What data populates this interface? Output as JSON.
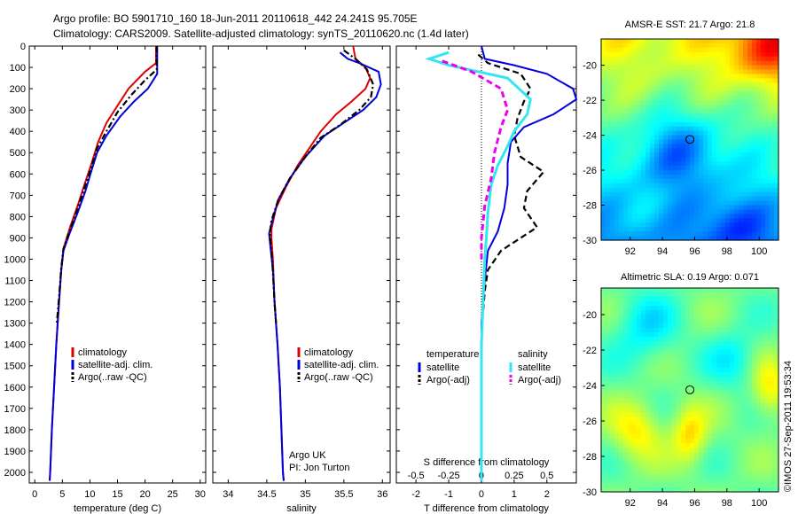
{
  "title": {
    "line1": "Argo profile: BO 5901710_160 18-Jun-2011 20110618_442 24.241S 95.705E",
    "line2": "Climatology: CARS2009. Satellite-adjusted climatology: synTS_20110620.nc (1.4d later)"
  },
  "colors": {
    "climatology": "#dd0000",
    "satellite": "#0000dd",
    "argo": "#000000",
    "sat_salinity": "#33e6f0",
    "argo_salinity": "#ee00ee"
  },
  "side_text": "©IMOS 27-Sep-2011 19:53:34",
  "chart_data": [
    {
      "type": "line",
      "id": "temperature",
      "xlabel": "temperature (deg C)",
      "ylabel": "",
      "xlim": [
        -1,
        31
      ],
      "ylim": [
        2050,
        0
      ],
      "xticks": [
        "0",
        "5",
        "10",
        "15",
        "20",
        "25",
        "30"
      ],
      "yticks": [
        "0",
        "100",
        "200",
        "300",
        "400",
        "500",
        "600",
        "700",
        "800",
        "900",
        "1000",
        "1100",
        "1200",
        "1300",
        "1400",
        "1500",
        "1600",
        "1700",
        "1800",
        "1900",
        "2000"
      ],
      "legend": [
        "climatology",
        "satellite-adj. clim.",
        "Argo(..raw -QC)"
      ],
      "series": [
        {
          "name": "climatology",
          "style": "solid",
          "color": "#dd0000",
          "points": [
            [
              22.0,
              0
            ],
            [
              22.0,
              80
            ],
            [
              20.0,
              120
            ],
            [
              17.0,
              200
            ],
            [
              15.0,
              280
            ],
            [
              13.0,
              360
            ],
            [
              11.5,
              450
            ],
            [
              10.3,
              550
            ],
            [
              9.0,
              650
            ],
            [
              7.9,
              740
            ],
            [
              6.4,
              850
            ],
            [
              5.2,
              950
            ],
            [
              4.8,
              1050
            ],
            [
              4.4,
              1200
            ],
            [
              3.9,
              1400
            ],
            [
              3.5,
              1600
            ],
            [
              3.1,
              1800
            ],
            [
              2.8,
              2000
            ],
            [
              2.7,
              2040
            ]
          ]
        },
        {
          "name": "satellite-adj. clim.",
          "style": "solid",
          "color": "#0000dd",
          "points": [
            [
              22.2,
              0
            ],
            [
              22.2,
              130
            ],
            [
              20.5,
              200
            ],
            [
              18.0,
              260
            ],
            [
              15.5,
              330
            ],
            [
              13.0,
              420
            ],
            [
              11.3,
              500
            ],
            [
              10.1,
              600
            ],
            [
              9.2,
              680
            ],
            [
              7.8,
              780
            ],
            [
              6.3,
              880
            ],
            [
              5.2,
              960
            ],
            [
              4.8,
              1050
            ],
            [
              4.4,
              1200
            ],
            [
              3.9,
              1400
            ],
            [
              3.5,
              1600
            ],
            [
              3.1,
              1800
            ],
            [
              2.8,
              2000
            ],
            [
              2.7,
              2040
            ]
          ]
        },
        {
          "name": "Argo(..raw -QC)",
          "style": "dashdot",
          "color": "#000000",
          "points": [
            [
              22.1,
              0
            ],
            [
              22.1,
              110
            ],
            [
              20.0,
              160
            ],
            [
              17.5,
              230
            ],
            [
              15.0,
              310
            ],
            [
              13.0,
              400
            ],
            [
              11.3,
              480
            ],
            [
              10.1,
              580
            ],
            [
              9.1,
              660
            ],
            [
              7.8,
              760
            ],
            [
              6.3,
              870
            ],
            [
              5.2,
              950
            ],
            [
              4.8,
              1040
            ],
            [
              4.4,
              1180
            ],
            [
              4.0,
              1300
            ]
          ]
        }
      ]
    },
    {
      "type": "line",
      "id": "salinity",
      "xlabel": "salinity",
      "ylabel": "",
      "xlim": [
        33.8,
        36.1
      ],
      "ylim": [
        2050,
        0
      ],
      "xticks": [
        "34",
        "34.5",
        "35",
        "35.5",
        "36"
      ],
      "legend": [
        "climatology",
        "satellite-adj. clim.",
        "Argo(..raw -QC)"
      ],
      "annotation": [
        "Argo UK",
        "PI: Jon Turton"
      ],
      "series": [
        {
          "name": "climatology",
          "style": "solid",
          "color": "#dd0000",
          "points": [
            [
              35.62,
              0
            ],
            [
              35.65,
              60
            ],
            [
              35.78,
              100
            ],
            [
              35.84,
              150
            ],
            [
              35.78,
              200
            ],
            [
              35.6,
              260
            ],
            [
              35.4,
              320
            ],
            [
              35.2,
              400
            ],
            [
              35.05,
              480
            ],
            [
              34.9,
              560
            ],
            [
              34.75,
              660
            ],
            [
              34.62,
              760
            ],
            [
              34.56,
              860
            ],
            [
              34.56,
              900
            ],
            [
              34.58,
              1000
            ],
            [
              34.6,
              1200
            ],
            [
              34.64,
              1400
            ],
            [
              34.67,
              1600
            ],
            [
              34.69,
              1800
            ],
            [
              34.71,
              2000
            ],
            [
              34.72,
              2040
            ]
          ]
        },
        {
          "name": "satellite-adj. clim.",
          "style": "solid",
          "color": "#0000dd",
          "points": [
            [
              35.45,
              30
            ],
            [
              35.55,
              60
            ],
            [
              35.7,
              80
            ],
            [
              35.95,
              120
            ],
            [
              35.98,
              180
            ],
            [
              35.92,
              240
            ],
            [
              35.75,
              300
            ],
            [
              35.5,
              360
            ],
            [
              35.25,
              420
            ],
            [
              35.0,
              520
            ],
            [
              34.8,
              620
            ],
            [
              34.65,
              720
            ],
            [
              34.57,
              820
            ],
            [
              34.53,
              880
            ],
            [
              34.55,
              950
            ],
            [
              34.58,
              1050
            ],
            [
              34.6,
              1200
            ],
            [
              34.64,
              1400
            ],
            [
              34.67,
              1600
            ],
            [
              34.69,
              1800
            ],
            [
              34.71,
              2000
            ],
            [
              34.72,
              2040
            ]
          ]
        },
        {
          "name": "Argo(..raw -QC)",
          "style": "dashdot",
          "color": "#000000",
          "points": [
            [
              35.5,
              20
            ],
            [
              35.65,
              60
            ],
            [
              35.8,
              110
            ],
            [
              35.88,
              180
            ],
            [
              35.85,
              240
            ],
            [
              35.7,
              300
            ],
            [
              35.45,
              370
            ],
            [
              35.2,
              430
            ],
            [
              35.0,
              520
            ],
            [
              34.8,
              620
            ],
            [
              34.65,
              720
            ],
            [
              34.56,
              820
            ],
            [
              34.54,
              880
            ],
            [
              34.56,
              960
            ],
            [
              34.58,
              1060
            ],
            [
              34.6,
              1200
            ],
            [
              34.62,
              1300
            ]
          ]
        }
      ]
    },
    {
      "type": "line",
      "id": "difference",
      "xlabel": "T difference from climatology",
      "xlabel_top": "S difference from climatology",
      "xlim": [
        -2.6,
        2.9
      ],
      "ylim": [
        2050,
        0
      ],
      "xticks": [
        "-2",
        "-1",
        "0",
        "1",
        "2"
      ],
      "xticks_salinity": [
        "-0.5",
        "-0.25",
        "0",
        "0.25",
        "0.5"
      ],
      "legend_titles": [
        "temperature",
        "salinity"
      ],
      "legend_temperature": [
        "satellite",
        "Argo(-adj)"
      ],
      "legend_salinity": [
        "satellite",
        "Argo(-adj)"
      ],
      "series": [
        {
          "name": "satellite",
          "quantity": "temperature",
          "style": "solid",
          "color": "#0000dd",
          "points": [
            [
              0,
              0
            ],
            [
              0.1,
              60
            ],
            [
              1.0,
              90
            ],
            [
              2.0,
              130
            ],
            [
              2.8,
              200
            ],
            [
              2.9,
              250
            ],
            [
              2.2,
              320
            ],
            [
              1.3,
              380
            ],
            [
              0.9,
              450
            ],
            [
              0.8,
              550
            ],
            [
              0.8,
              650
            ],
            [
              0.7,
              760
            ],
            [
              0.5,
              870
            ],
            [
              0.2,
              960
            ],
            [
              0.1,
              1100
            ],
            [
              0.0,
              1300
            ],
            [
              0.0,
              2040
            ]
          ]
        },
        {
          "name": "Argo(-adj)",
          "quantity": "temperature",
          "style": "dashed",
          "color": "#000000",
          "points": [
            [
              -0.1,
              40
            ],
            [
              0.2,
              80
            ],
            [
              1.2,
              130
            ],
            [
              1.5,
              200
            ],
            [
              1.3,
              260
            ],
            [
              1.1,
              340
            ],
            [
              1.0,
              420
            ],
            [
              1.2,
              520
            ],
            [
              1.9,
              590
            ],
            [
              1.4,
              680
            ],
            [
              1.3,
              760
            ],
            [
              1.7,
              850
            ],
            [
              0.6,
              960
            ],
            [
              0.2,
              1050
            ],
            [
              0.1,
              1150
            ],
            [
              0.05,
              1250
            ]
          ]
        },
        {
          "name": "satellite",
          "quantity": "salinity",
          "style": "solid",
          "color": "#33e6f0",
          "points": [
            [
              -1.0,
              30
            ],
            [
              -1.6,
              60
            ],
            [
              -1.0,
              90
            ],
            [
              0.8,
              150
            ],
            [
              1.5,
              250
            ],
            [
              1.4,
              320
            ],
            [
              1.0,
              400
            ],
            [
              0.8,
              470
            ],
            [
              0.5,
              560
            ],
            [
              0.3,
              650
            ],
            [
              0.2,
              780
            ],
            [
              0.15,
              900
            ],
            [
              0.1,
              1000
            ],
            [
              0.05,
              1200
            ],
            [
              0.0,
              1400
            ],
            [
              0.0,
              2040
            ]
          ]
        },
        {
          "name": "Argo(-adj)",
          "quantity": "salinity",
          "style": "dashed",
          "color": "#ee00ee",
          "points": [
            [
              -1.2,
              70
            ],
            [
              -0.3,
              120
            ],
            [
              0.6,
              200
            ],
            [
              0.8,
              300
            ],
            [
              0.6,
              380
            ],
            [
              0.4,
              500
            ],
            [
              0.3,
              620
            ],
            [
              0.1,
              750
            ],
            [
              0.0,
              900
            ],
            [
              0.0,
              1000
            ]
          ]
        }
      ]
    },
    {
      "type": "heatmap",
      "id": "sst",
      "title": "AMSR-E SST: 21.7 Argo: 21.8",
      "xlim": [
        90.2,
        101.2
      ],
      "ylim": [
        -30,
        -18.5
      ],
      "xticks": [
        "92",
        "94",
        "96",
        "98",
        "100"
      ],
      "yticks": [
        "-20",
        "-22",
        "-24",
        "-26",
        "-28",
        "-30"
      ],
      "marker": [
        95.705,
        -24.241
      ]
    },
    {
      "type": "heatmap",
      "id": "sla",
      "title": "Altimetric SLA: 0.19 Argo: 0.071",
      "xlim": [
        90.2,
        101.2
      ],
      "ylim": [
        -30,
        -18.5
      ],
      "xticks": [
        "92",
        "94",
        "96",
        "98",
        "100"
      ],
      "yticks": [
        "-20",
        "-22",
        "-24",
        "-26",
        "-28",
        "-30"
      ],
      "marker": [
        95.705,
        -24.241
      ]
    }
  ]
}
